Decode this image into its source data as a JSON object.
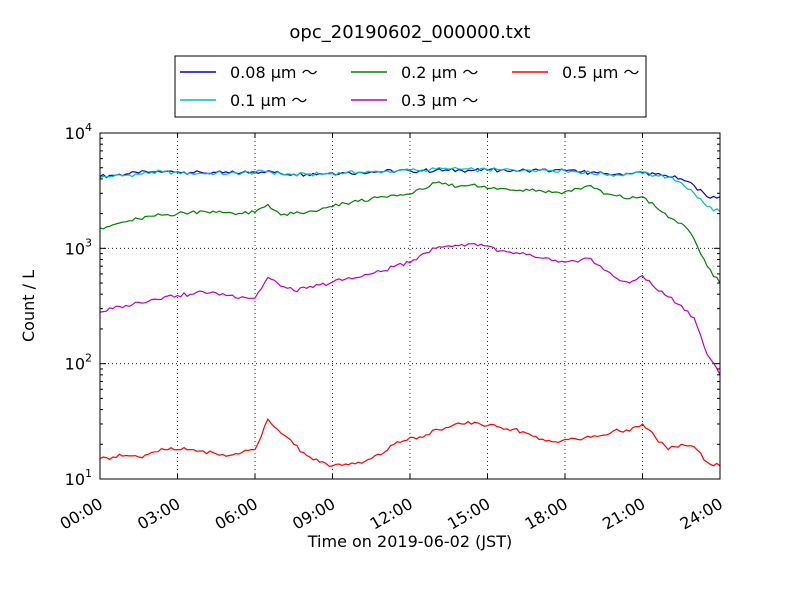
{
  "chart_data": {
    "type": "line",
    "title": "opc_20190602_000000.txt",
    "xlabel": "Time on 2019-06-02 (JST)",
    "ylabel": "Count / L",
    "x_ticks": [
      "00:00",
      "03:00",
      "06:00",
      "09:00",
      "12:00",
      "15:00",
      "18:00",
      "21:00",
      "24:00"
    ],
    "y_ticks": [
      {
        "base": "10",
        "exp": "1"
      },
      {
        "base": "10",
        "exp": "2"
      },
      {
        "base": "10",
        "exp": "3"
      },
      {
        "base": "10",
        "exp": "4"
      }
    ],
    "xlim": [
      0,
      24
    ],
    "ylim": [
      10,
      10000
    ],
    "y_scale": "log",
    "grid": true,
    "legend_placement": "top-center",
    "x": [
      0,
      0.5,
      1,
      1.5,
      2,
      2.5,
      3,
      3.5,
      4,
      4.5,
      5,
      5.5,
      6,
      6.5,
      7,
      7.5,
      8,
      8.5,
      9,
      9.5,
      10,
      10.5,
      11,
      11.5,
      12,
      12.5,
      13,
      13.5,
      14,
      14.5,
      15,
      15.5,
      16,
      16.5,
      17,
      17.5,
      18,
      18.5,
      19,
      19.5,
      20,
      20.5,
      21,
      21.5,
      22,
      22.5,
      23,
      23.5,
      24
    ],
    "series": [
      {
        "name": "0.08 μm ～",
        "color": "#0000cc",
        "values": [
          4200,
          4300,
          4400,
          4500,
          4600,
          4650,
          4600,
          4550,
          4500,
          4550,
          4500,
          4550,
          4600,
          4700,
          4450,
          4400,
          4400,
          4450,
          4500,
          4500,
          4550,
          4600,
          4650,
          4700,
          4700,
          4700,
          4750,
          4750,
          4750,
          4750,
          4750,
          4750,
          4750,
          4750,
          4750,
          4700,
          4700,
          4600,
          4550,
          4450,
          4400,
          4450,
          4550,
          4400,
          4200,
          4000,
          3500,
          2800,
          2800
        ]
      },
      {
        "name": "0.1 μm ～",
        "color": "#00bfbf",
        "values": [
          4100,
          4200,
          4300,
          4400,
          4550,
          4600,
          4550,
          4500,
          4450,
          4500,
          4450,
          4500,
          4550,
          4650,
          4400,
          4350,
          4350,
          4400,
          4450,
          4500,
          4550,
          4600,
          4650,
          4700,
          4750,
          4800,
          4850,
          4850,
          4850,
          4800,
          4800,
          4800,
          4800,
          4800,
          4800,
          4750,
          4700,
          4600,
          4500,
          4400,
          4350,
          4400,
          4450,
          4300,
          4150,
          3700,
          3000,
          2300,
          2100
        ]
      },
      {
        "name": "0.2 μm ～",
        "color": "#008000",
        "values": [
          1500,
          1600,
          1700,
          1800,
          1900,
          1950,
          2000,
          2050,
          2100,
          2050,
          2050,
          2000,
          2050,
          2400,
          1950,
          2000,
          2050,
          2150,
          2300,
          2450,
          2550,
          2700,
          2800,
          2850,
          2950,
          3250,
          3700,
          3500,
          3500,
          3600,
          3300,
          3300,
          3200,
          3250,
          3200,
          3050,
          3100,
          3300,
          3500,
          2950,
          2850,
          2700,
          2800,
          2300,
          1850,
          1650,
          1200,
          700,
          500
        ]
      },
      {
        "name": "0.3 μm ～",
        "color": "#bf00bf",
        "values": [
          280,
          300,
          320,
          340,
          360,
          380,
          390,
          400,
          420,
          410,
          390,
          380,
          370,
          560,
          470,
          430,
          450,
          480,
          510,
          540,
          560,
          600,
          640,
          720,
          750,
          900,
          1000,
          1050,
          1080,
          1100,
          1050,
          950,
          900,
          880,
          830,
          780,
          760,
          760,
          820,
          650,
          550,
          500,
          580,
          450,
          380,
          320,
          250,
          120,
          80
        ]
      },
      {
        "name": "0.5 μm ～",
        "color": "#ff0000",
        "values": [
          15,
          15.5,
          16,
          15.5,
          17,
          18,
          18,
          18,
          17.5,
          16.5,
          16,
          17,
          18,
          33,
          25,
          20,
          16,
          14,
          13,
          13.5,
          14,
          15,
          17,
          21,
          23,
          23,
          27,
          28,
          30,
          31,
          29,
          28,
          27,
          25,
          22,
          21,
          22,
          22,
          23,
          24,
          27,
          26,
          30,
          23,
          18,
          20,
          19,
          14,
          13
        ]
      }
    ]
  }
}
